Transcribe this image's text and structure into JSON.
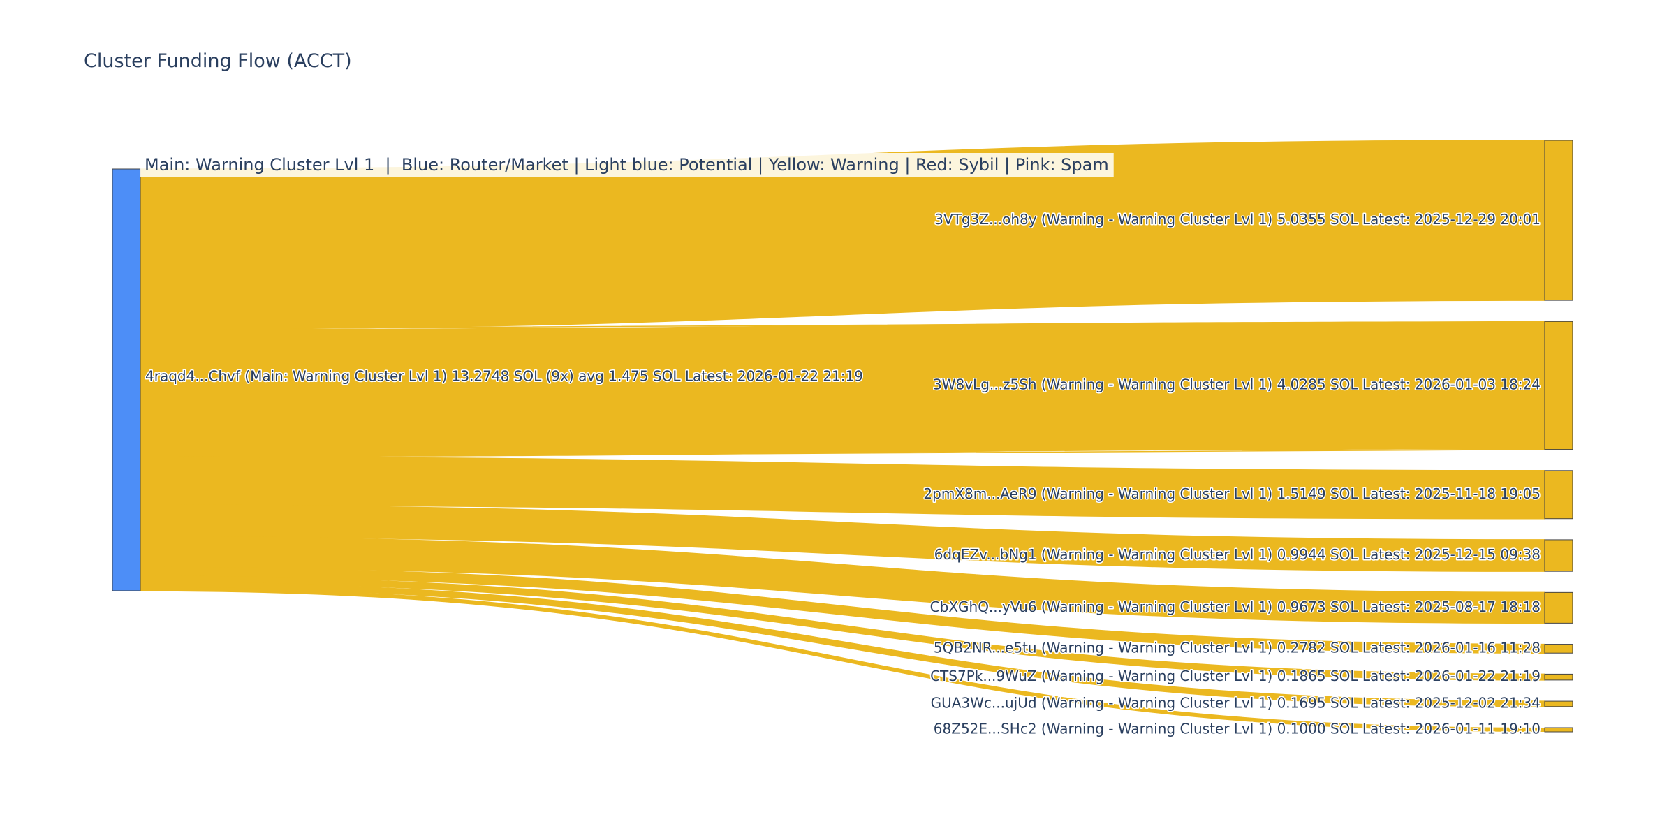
{
  "chart_data": {
    "type": "sankey",
    "title": "Cluster Funding Flow (ACCT)",
    "annotation": "Main: Warning Cluster Lvl 1  |  Blue: Router/Market | Light blue: Potential | Yellow: Warning | Red: Sybil | Pink: Spam",
    "colors": {
      "source": "#4d8ef7",
      "link": "#ebb820",
      "target": "#ebb820"
    },
    "source": {
      "label": "4raqd4...Chvf (Main: Warning Cluster Lvl 1) 13.2748 SOL (9x) avg 1.475 SOL Latest: 2026-01-22 21:19",
      "value": 13.2748
    },
    "targets": [
      {
        "label": "3VTg3Z...oh8y (Warning - Warning Cluster Lvl 1) 5.0355 SOL Latest: 2025-12-29 20:01",
        "value": 5.0355
      },
      {
        "label": "3W8vLg...z5Sh (Warning - Warning Cluster Lvl 1) 4.0285 SOL Latest: 2026-01-03 18:24",
        "value": 4.0285
      },
      {
        "label": "2pmX8m...AeR9 (Warning - Warning Cluster Lvl 1) 1.5149 SOL Latest: 2025-11-18 19:05",
        "value": 1.5149
      },
      {
        "label": "6dqEZv...bNg1 (Warning - Warning Cluster Lvl 1) 0.9944 SOL Latest: 2025-12-15 09:38",
        "value": 0.9944
      },
      {
        "label": "CbXGhQ...yVu6 (Warning - Warning Cluster Lvl 1) 0.9673 SOL Latest: 2025-08-17 18:18",
        "value": 0.9673
      },
      {
        "label": "5QB2NR...e5tu (Warning - Warning Cluster Lvl 1) 0.2782 SOL Latest: 2026-01-16 11:28",
        "value": 0.2782
      },
      {
        "label": "CTS7Pk...9WuZ (Warning - Warning Cluster Lvl 1) 0.1865 SOL Latest: 2026-01-22 21:19",
        "value": 0.1865
      },
      {
        "label": "GUA3Wc...ujUd (Warning - Warning Cluster Lvl 1) 0.1695 SOL Latest: 2025-12-02 21:34",
        "value": 0.1695
      },
      {
        "label": "68Z52E...SHc2 (Warning - Warning Cluster Lvl 1) 0.1000 SOL Latest: 2026-01-11 19:10",
        "value": 0.1
      }
    ]
  }
}
